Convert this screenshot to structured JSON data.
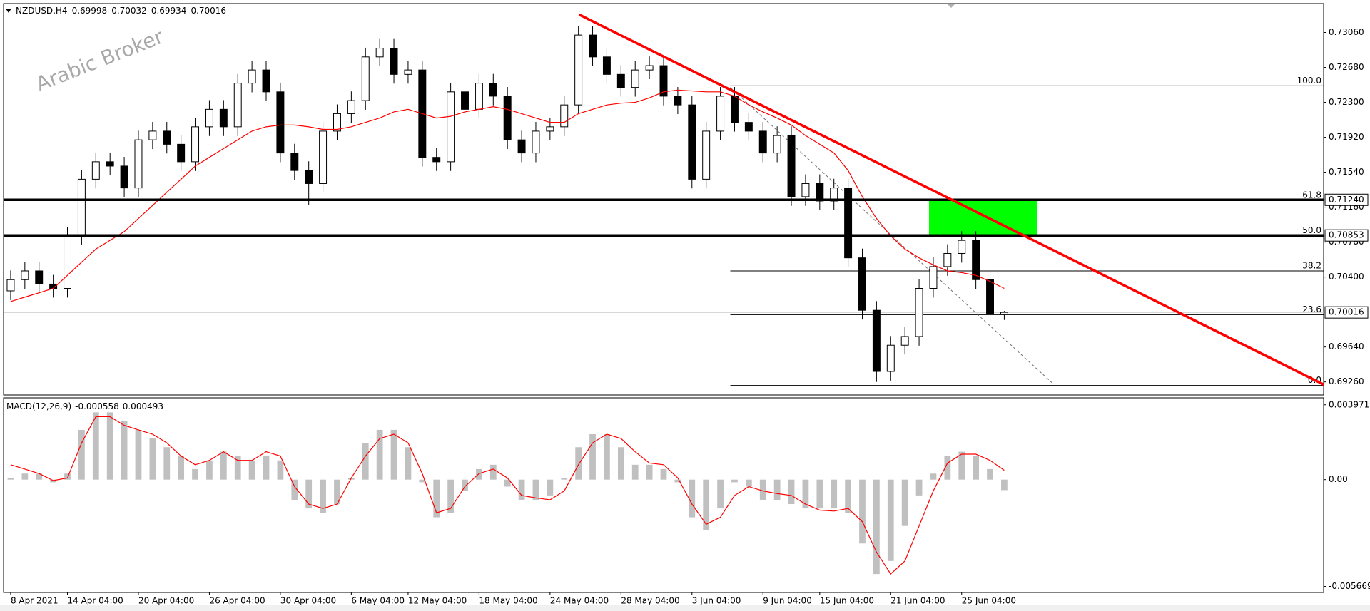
{
  "chart_data": [
    {
      "type": "candlestick",
      "symbol": "NZDUSD,H4",
      "watermark": "Arabic Broker",
      "categories": [
        "8 Apr 2021",
        null,
        null,
        null,
        "14 Apr 04:00",
        null,
        null,
        null,
        null,
        "20 Apr 04:00",
        null,
        null,
        null,
        null,
        "26 Apr 04:00",
        null,
        null,
        null,
        null,
        "30 Apr 04:00",
        null,
        null,
        null,
        null,
        "6 May 04:00",
        null,
        null,
        null,
        "12 May 04:00",
        null,
        null,
        null,
        null,
        "18 May 04:00",
        null,
        null,
        null,
        null,
        "24 May 04:00",
        null,
        null,
        null,
        null,
        "28 May 04:00",
        null,
        null,
        null,
        null,
        "3 Jun 04:00",
        null,
        null,
        null,
        null,
        "9 Jun 04:00",
        null,
        null,
        null,
        "15 Jun 04:00",
        null,
        null,
        null,
        null,
        "21 Jun 04:00",
        null,
        null,
        null,
        null,
        "25 Jun 04:00",
        null,
        null,
        null
      ],
      "ohlc": [
        [
          0.7025,
          0.70472,
          0.7015,
          0.70372
        ],
        [
          0.70372,
          0.70567,
          0.70272,
          0.70467
        ],
        [
          0.70467,
          0.70567,
          0.70224,
          0.70324
        ],
        [
          0.70324,
          0.70424,
          0.70177,
          0.70277
        ],
        [
          0.70277,
          0.70947,
          0.70177,
          0.70847
        ],
        [
          0.70847,
          0.71564,
          0.70747,
          0.71464
        ],
        [
          0.71464,
          0.71754,
          0.71364,
          0.71654
        ],
        [
          0.71654,
          0.71754,
          0.71507,
          0.71607
        ],
        [
          0.71607,
          0.71707,
          0.71269,
          0.71369
        ],
        [
          0.71369,
          0.71992,
          0.71269,
          0.71892
        ],
        [
          0.71892,
          0.72087,
          0.71792,
          0.71987
        ],
        [
          0.71987,
          0.72087,
          0.71744,
          0.71844
        ],
        [
          0.71844,
          0.71944,
          0.71554,
          0.71654
        ],
        [
          0.71654,
          0.72134,
          0.71554,
          0.72034
        ],
        [
          0.72034,
          0.72324,
          0.71934,
          0.72224
        ],
        [
          0.72224,
          0.72324,
          0.71934,
          0.72034
        ],
        [
          0.72034,
          0.72609,
          0.71934,
          0.72509
        ],
        [
          0.72509,
          0.72752,
          0.72409,
          0.72652
        ],
        [
          0.72652,
          0.72752,
          0.72314,
          0.72414
        ],
        [
          0.72414,
          0.72514,
          0.71649,
          0.71749
        ],
        [
          0.71749,
          0.71849,
          0.71459,
          0.71559
        ],
        [
          0.71559,
          0.71659,
          0.7118,
          0.71417
        ],
        [
          0.71417,
          0.72087,
          0.71317,
          0.71987
        ],
        [
          0.71987,
          0.72277,
          0.71887,
          0.72177
        ],
        [
          0.72177,
          0.72419,
          0.72077,
          0.72319
        ],
        [
          0.72319,
          0.72894,
          0.72219,
          0.72794
        ],
        [
          0.72794,
          0.72989,
          0.72694,
          0.72889
        ],
        [
          0.72889,
          0.72989,
          0.72504,
          0.72604
        ],
        [
          0.72604,
          0.72752,
          0.72504,
          0.72652
        ],
        [
          0.72652,
          0.72752,
          0.71602,
          0.71702
        ],
        [
          0.71702,
          0.71802,
          0.71554,
          0.71654
        ],
        [
          0.71654,
          0.72514,
          0.71554,
          0.72414
        ],
        [
          0.72414,
          0.72514,
          0.72124,
          0.72224
        ],
        [
          0.72224,
          0.72609,
          0.72124,
          0.72509
        ],
        [
          0.72509,
          0.72609,
          0.72267,
          0.72367
        ],
        [
          0.72367,
          0.72467,
          0.71792,
          0.71892
        ],
        [
          0.71892,
          0.71992,
          0.71649,
          0.71749
        ],
        [
          0.71749,
          0.72087,
          0.71649,
          0.71987
        ],
        [
          0.71987,
          0.72134,
          0.71887,
          0.72034
        ],
        [
          0.72034,
          0.72372,
          0.71934,
          0.72272
        ],
        [
          0.72272,
          0.73132,
          0.72172,
          0.73032
        ],
        [
          0.73032,
          0.73132,
          0.72694,
          0.72794
        ],
        [
          0.72794,
          0.72894,
          0.72504,
          0.72604
        ],
        [
          0.72604,
          0.72704,
          0.72362,
          0.72462
        ],
        [
          0.72462,
          0.72752,
          0.72362,
          0.72652
        ],
        [
          0.72652,
          0.72799,
          0.72552,
          0.72699
        ],
        [
          0.72699,
          0.72799,
          0.72267,
          0.72367
        ],
        [
          0.72367,
          0.72467,
          0.72172,
          0.72272
        ],
        [
          0.72272,
          0.72372,
          0.71364,
          0.71464
        ],
        [
          0.71464,
          0.72087,
          0.71364,
          0.71987
        ],
        [
          0.71987,
          0.72467,
          0.71887,
          0.72367
        ],
        [
          0.72367,
          0.72467,
          0.71982,
          0.72082
        ],
        [
          0.72082,
          0.72182,
          0.71887,
          0.71987
        ],
        [
          0.71987,
          0.72087,
          0.71649,
          0.71749
        ],
        [
          0.71749,
          0.72039,
          0.71649,
          0.71939
        ],
        [
          0.71939,
          0.72039,
          0.71174,
          0.71274
        ],
        [
          0.71274,
          0.71517,
          0.71174,
          0.71417
        ],
        [
          0.71417,
          0.71517,
          0.71127,
          0.71227
        ],
        [
          0.71227,
          0.71469,
          0.71127,
          0.71369
        ],
        [
          0.71369,
          0.71469,
          0.70509,
          0.70609
        ],
        [
          0.70609,
          0.70709,
          0.69939,
          0.70039
        ],
        [
          0.70039,
          0.70139,
          0.6926,
          0.69374
        ],
        [
          0.69374,
          0.69759,
          0.69274,
          0.69659
        ],
        [
          0.69659,
          0.69854,
          0.69559,
          0.69754
        ],
        [
          0.69754,
          0.70377,
          0.69654,
          0.70277
        ],
        [
          0.70277,
          0.70614,
          0.70177,
          0.70514
        ],
        [
          0.70514,
          0.70757,
          0.70414,
          0.70657
        ],
        [
          0.70657,
          0.70899,
          0.70557,
          0.70799
        ],
        [
          0.70799,
          0.70899,
          0.70272,
          0.70372
        ],
        [
          0.70372,
          0.70472,
          0.699,
          0.69998
        ],
        [
          0.69998,
          0.70032,
          0.69934,
          0.70016
        ]
      ],
      "up_color": "#ffffff",
      "down_color": "#000000",
      "ma": {
        "color": "#ff0000",
        "values": [
          0.70134,
          0.70182,
          0.70229,
          0.70277,
          0.70419,
          0.70562,
          0.70704,
          0.70799,
          0.70894,
          0.71037,
          0.71179,
          0.71322,
          0.71464,
          0.71607,
          0.71702,
          0.71797,
          0.71892,
          0.71987,
          0.72034,
          0.72053,
          0.72053,
          0.72034,
          0.72006,
          0.72006,
          0.72034,
          0.72082,
          0.72129,
          0.72196,
          0.72224,
          0.72177,
          0.72129,
          0.72148,
          0.72196,
          0.72224,
          0.72253,
          0.72224,
          0.72177,
          0.72129,
          0.72082,
          0.72082,
          0.72177,
          0.72224,
          0.72272,
          0.72291,
          0.723,
          0.72348,
          0.72414,
          0.72433,
          0.72424,
          0.72414,
          0.72414,
          0.72367,
          0.72272,
          0.72196,
          0.72129,
          0.72053,
          0.71939,
          0.71844,
          0.71749,
          0.71559,
          0.71274,
          0.71037,
          0.70847,
          0.70704,
          0.70609,
          0.70533,
          0.70467,
          0.70448,
          0.70419,
          0.70353,
          0.70277
        ]
      },
      "xlim": [
        -0.5,
        92.5
      ],
      "ylim": [
        0.69118,
        0.73374
      ],
      "yticks": [
        {
          "value": 0.7306,
          "label": "0.73060"
        },
        {
          "value": 0.7268,
          "label": "0.72680"
        },
        {
          "value": 0.723,
          "label": "0.72300"
        },
        {
          "value": 0.7192,
          "label": "0.71920"
        },
        {
          "value": 0.7154,
          "label": "0.71540"
        },
        {
          "value": 0.7116,
          "label": "0.71160"
        },
        {
          "value": 0.7078,
          "label": "0.70780"
        },
        {
          "value": 0.704,
          "label": "0.70400"
        },
        {
          "value": 0.7002,
          "label": "0.70020"
        },
        {
          "value": 0.6964,
          "label": "0.69640"
        },
        {
          "value": 0.6926,
          "label": "0.69260"
        }
      ],
      "trendline": {
        "color": "#ff0000",
        "x": [
          40.1,
          92.5
        ],
        "y": [
          0.7325,
          0.69232
        ]
      },
      "diagonal": {
        "x": [
          50.7,
          73.5
        ],
        "y": [
          0.72462,
          0.69232
        ]
      },
      "fibonacci": {
        "start": 50.7,
        "levels": [
          {
            "label": "100.0",
            "price": 0.7248
          },
          {
            "label": "61.8",
            "price": 0.71235
          },
          {
            "label": "50.0",
            "price": 0.70851
          },
          {
            "label": "38.2",
            "price": 0.70467
          },
          {
            "label": "23.6",
            "price": 0.69991
          },
          {
            "label": "0.0",
            "price": 0.69222
          }
        ]
      },
      "hlines": [
        {
          "value": 0.7124,
          "label": "0.71240"
        },
        {
          "value": 0.70853,
          "label": "0.70853"
        }
      ],
      "bid": {
        "value": 0.70016,
        "label": "0.70016"
      },
      "zone": {
        "color": "#00ff00",
        "x": [
          64.7,
          72.3
        ],
        "y": [
          0.7124,
          0.70853
        ]
      }
    },
    {
      "type": "macd",
      "title": "MACD(12,26,9)",
      "histogram": {
        "color": "#c0c0c0",
        "values": [
          9e-05,
          0.00032,
          0.00032,
          -0.00014,
          0.00032,
          0.00264,
          0.00357,
          0.00357,
          0.00311,
          0.00264,
          0.00218,
          0.00172,
          0.00125,
          0.00056,
          0.00102,
          0.00148,
          0.00125,
          0.00102,
          0.00125,
          0.00102,
          -0.00107,
          -0.00153,
          -0.00176,
          -0.0013,
          9e-05,
          0.00195,
          0.00264,
          0.00264,
          0.00172,
          -0.00014,
          -0.002,
          -0.00176,
          -0.0006,
          0.00056,
          0.00079,
          -0.00037,
          -0.00107,
          -0.00107,
          -0.00084,
          9e-05,
          0.00172,
          0.00241,
          0.00241,
          0.00172,
          0.00079,
          0.00079,
          0.00056,
          -0.00014,
          -0.002,
          -0.00269,
          -0.00153,
          -0.00014,
          -0.00037,
          -0.00107,
          -0.00107,
          -0.0013,
          -0.00153,
          -0.00153,
          -0.00153,
          -0.00176,
          -0.00339,
          -0.00501,
          -0.00432,
          -0.00246,
          -0.00084,
          0.00032,
          0.00125,
          0.00148,
          0.00125,
          0.00056,
          -0.000558
        ]
      },
      "signal": {
        "color": "#ff0000",
        "values": [
          0.00079,
          0.00056,
          0.00032,
          -5e-05,
          9e-05,
          0.00195,
          0.00334,
          0.00334,
          0.00288,
          0.00264,
          0.00241,
          0.00195,
          0.00125,
          0.00079,
          0.00102,
          0.00148,
          0.00102,
          0.00102,
          0.00148,
          0.00125,
          -0.00037,
          -0.0013,
          -0.00153,
          -0.0013,
          9e-05,
          0.00125,
          0.00218,
          0.00241,
          0.00195,
          0.00032,
          -0.00176,
          -0.00153,
          -0.00037,
          0.00032,
          0.00056,
          9e-05,
          -0.00084,
          -0.00097,
          -0.00107,
          -0.0006,
          0.00079,
          0.00195,
          0.00241,
          0.00218,
          0.00148,
          0.00088,
          0.00079,
          9e-05,
          -0.0013,
          -0.00237,
          -0.002,
          -0.00084,
          -0.00037,
          -0.0006,
          -0.00074,
          -0.00084,
          -0.0013,
          -0.00162,
          -0.00167,
          -0.00153,
          -0.00223,
          -0.00385,
          -0.00501,
          -0.00432,
          -0.00246,
          -0.0006,
          0.00088,
          0.00135,
          0.00135,
          0.00102,
          0.000493
        ]
      },
      "ylim": [
        -0.00599,
        0.00434
      ],
      "yticks": [
        0.003971,
        {
          "value": 0,
          "label": "0.00"
        },
        -0.005669
      ]
    }
  ]
}
